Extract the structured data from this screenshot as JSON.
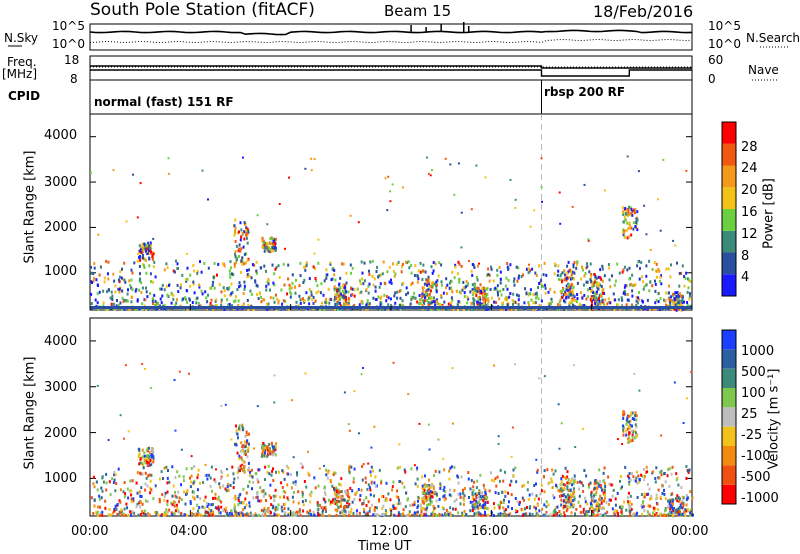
{
  "header": {
    "station": "South Pole Station (fitACF)",
    "beam": "Beam 15",
    "date": "18/Feb/2016"
  },
  "left_labels": {
    "nsky": "N.Sky",
    "freq": "Freq.",
    "mhz": "[MHz]",
    "cpid": "CPID"
  },
  "right_labels": {
    "nsearch": "N.Search",
    "nave": "Nave"
  },
  "cpid_segments": [
    {
      "label": "normal (fast) 151 RF",
      "start_hour": 0
    },
    {
      "label": "rbsp 200 RF",
      "start_hour": 18
    }
  ],
  "colors": {
    "power": [
      "#1a1aff",
      "#2a4fa0",
      "#3b8a7a",
      "#6bcf3f",
      "#f3c218",
      "#f39a1a",
      "#f05a10",
      "#ff0000"
    ],
    "velocity": [
      "#ff0000",
      "#f05010",
      "#f38a10",
      "#f3c21a",
      "#bdbdbd",
      "#7ec850",
      "#3b8a7a",
      "#2a5fa0",
      "#1a3fff"
    ],
    "ground": "#9a9a9a"
  },
  "chart_data": [
    {
      "type": "line",
      "name": "noise",
      "ylabel_left": "N.Sky",
      "ylabel_right": "N.Search",
      "y_ticks_left": [
        "10^5",
        "10^0"
      ],
      "y_ticks_right": [
        "10^5",
        "10^0"
      ],
      "xlim_hours": [
        0,
        24
      ]
    },
    {
      "type": "line",
      "name": "frequency",
      "ylabel_left": "Freq. [MHz]",
      "ylabel_right": "Nave",
      "y_ticks_left": [
        "18",
        "8"
      ],
      "y_ticks_right": [
        "60",
        "0"
      ],
      "xlim_hours": [
        0,
        24
      ]
    },
    {
      "type": "heatmap",
      "name": "power",
      "ylabel": "Slant Range [km]",
      "ylim": [
        180,
        4500
      ],
      "y_ticks": [
        "4000",
        "3000",
        "2000",
        "1000"
      ],
      "colorbar_label": "Power [dB]",
      "colorbar_ticks": [
        "28",
        "24",
        "20",
        "16",
        "12",
        "8",
        "4"
      ],
      "xlim_hours": [
        0,
        24
      ]
    },
    {
      "type": "heatmap",
      "name": "velocity",
      "ylabel": "Slant Range [km]",
      "ylim": [
        180,
        4500
      ],
      "y_ticks": [
        "4000",
        "3000",
        "2000",
        "1000"
      ],
      "colorbar_label": "Velocity [m s⁻¹]",
      "colorbar_ticks": [
        "1000",
        "500",
        "100",
        "25",
        "-25",
        "-100",
        "-500",
        "-1000"
      ],
      "xlim_hours": [
        0,
        24
      ]
    }
  ],
  "xaxis": {
    "ticks": [
      "00:00",
      "04:00",
      "08:00",
      "12:00",
      "16:00",
      "20:00",
      "00:00"
    ],
    "label": "Time UT"
  }
}
